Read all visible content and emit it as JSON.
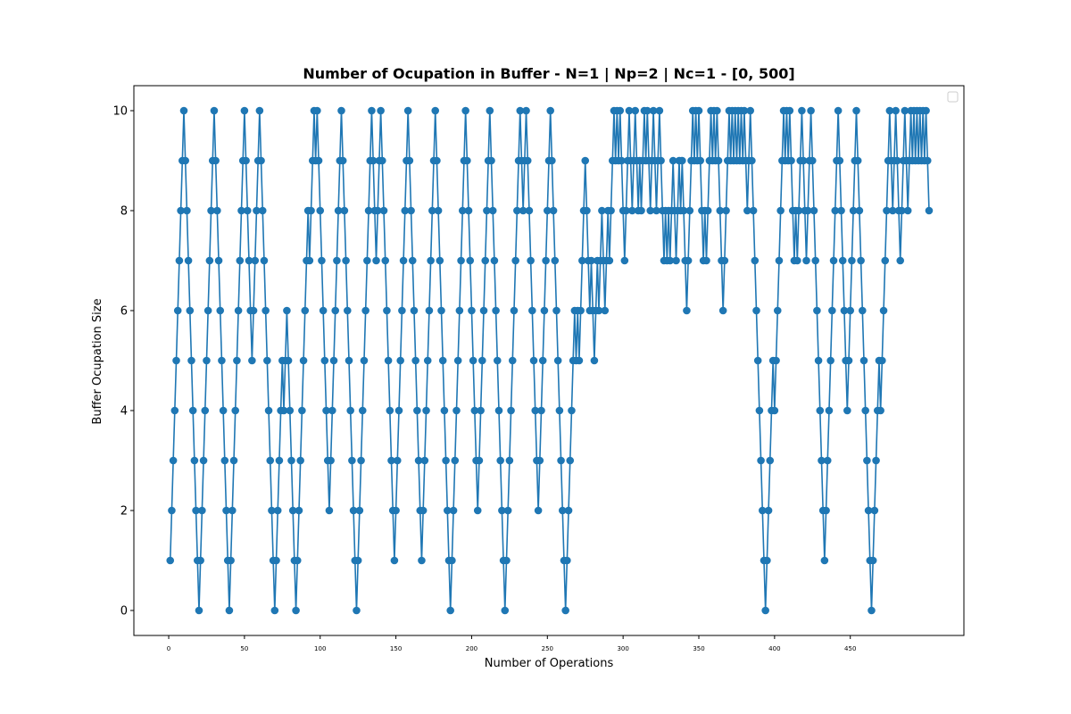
{
  "chart_data": {
    "type": "line",
    "title": "Number of Ocupation in Buffer - N=1 | Np=2 | Nc=1 - [0, 500]",
    "xlabel": "Number of Operations",
    "ylabel": "Buffer Ocupation Size",
    "xlim": [
      -23,
      525
    ],
    "ylim": [
      -0.5,
      10.5
    ],
    "x_ticks": [
      0,
      50,
      100,
      150,
      200,
      250,
      300,
      350,
      400,
      450
    ],
    "y_ticks": [
      0,
      2,
      4,
      6,
      8,
      10
    ],
    "grid": false,
    "legend": "top-right (empty)",
    "series": [
      {
        "color": "#1f77b4",
        "marker": "circle",
        "x_start": 1,
        "values": [
          1,
          2,
          3,
          4,
          5,
          6,
          7,
          8,
          9,
          10,
          9,
          8,
          7,
          6,
          5,
          4,
          3,
          2,
          1,
          0,
          1,
          2,
          3,
          4,
          5,
          6,
          7,
          8,
          9,
          10,
          9,
          8,
          7,
          6,
          5,
          4,
          3,
          2,
          1,
          0,
          1,
          2,
          3,
          4,
          5,
          6,
          7,
          8,
          9,
          10,
          9,
          8,
          7,
          6,
          5,
          6,
          7,
          8,
          9,
          10,
          9,
          8,
          7,
          6,
          5,
          4,
          3,
          2,
          1,
          0,
          1,
          2,
          3,
          4,
          5,
          4,
          5,
          6,
          5,
          4,
          3,
          2,
          1,
          0,
          1,
          2,
          3,
          4,
          5,
          6,
          7,
          8,
          7,
          8,
          9,
          10,
          9,
          10,
          9,
          8,
          7,
          6,
          5,
          4,
          3,
          2,
          3,
          4,
          5,
          6,
          7,
          8,
          9,
          10,
          9,
          8,
          7,
          6,
          5,
          4,
          3,
          2,
          1,
          0,
          1,
          2,
          3,
          4,
          5,
          6,
          7,
          8,
          9,
          10,
          9,
          8,
          7,
          8,
          9,
          10,
          9,
          8,
          7,
          6,
          5,
          4,
          3,
          2,
          1,
          2,
          3,
          4,
          5,
          6,
          7,
          8,
          9,
          10,
          9,
          8,
          7,
          6,
          5,
          4,
          3,
          2,
          1,
          2,
          3,
          4,
          5,
          6,
          7,
          8,
          9,
          10,
          9,
          8,
          7,
          6,
          5,
          4,
          3,
          2,
          1,
          0,
          1,
          2,
          3,
          4,
          5,
          6,
          7,
          8,
          9,
          10,
          9,
          8,
          7,
          6,
          5,
          4,
          3,
          2,
          3,
          4,
          5,
          6,
          7,
          8,
          9,
          10,
          9,
          8,
          7,
          6,
          5,
          4,
          3,
          2,
          1,
          0,
          1,
          2,
          3,
          4,
          5,
          6,
          7,
          8,
          9,
          10,
          9,
          8,
          9,
          10,
          9,
          8,
          7,
          6,
          5,
          4,
          3,
          2,
          3,
          4,
          5,
          6,
          7,
          8,
          9,
          10,
          9,
          8,
          7,
          6,
          5,
          4,
          3,
          2,
          1,
          0,
          1,
          2,
          3,
          4,
          5,
          6,
          5,
          6,
          5,
          6,
          7,
          8,
          9,
          8,
          7,
          6,
          7,
          6,
          5,
          6,
          7,
          6,
          7,
          8,
          7,
          6,
          7,
          8,
          7,
          8,
          9,
          10,
          9,
          10,
          9,
          10,
          9,
          8,
          7,
          8,
          9,
          10,
          9,
          8,
          9,
          10,
          9,
          8,
          9,
          8,
          9,
          10,
          9,
          10,
          9,
          8,
          9,
          10,
          9,
          8,
          9,
          10,
          9,
          8,
          7,
          8,
          7,
          8,
          7,
          8,
          9,
          8,
          7,
          8,
          9,
          8,
          9,
          8,
          7,
          6,
          7,
          8,
          9,
          10,
          9,
          10,
          9,
          10,
          9,
          8,
          7,
          8,
          7,
          8,
          9,
          10,
          9,
          10,
          9,
          10,
          9,
          8,
          7,
          6,
          7,
          8,
          9,
          10,
          9,
          10,
          9,
          10,
          9,
          10,
          9,
          10,
          9,
          10,
          9,
          8,
          9,
          10,
          9,
          8,
          7,
          6,
          5,
          4,
          3,
          2,
          1,
          0,
          1,
          2,
          3,
          4,
          5,
          4,
          5,
          6,
          7,
          8,
          9,
          10,
          9,
          10,
          9,
          10,
          9,
          8,
          7,
          8,
          7,
          8,
          9,
          10,
          9,
          8,
          7,
          8,
          9,
          10,
          9,
          8,
          7,
          6,
          5,
          4,
          3,
          2,
          1,
          2,
          3,
          4,
          5,
          6,
          7,
          8,
          9,
          10,
          9,
          8,
          7,
          6,
          5,
          4,
          5,
          6,
          7,
          8,
          9,
          10,
          9,
          8,
          7,
          6,
          5,
          4,
          3,
          2,
          1,
          0,
          1,
          2,
          3,
          4,
          5,
          4,
          5,
          6,
          7,
          8,
          9,
          10,
          9,
          8,
          9,
          10,
          9,
          8,
          7,
          8,
          9,
          10,
          9,
          8,
          9,
          10,
          9,
          10,
          9,
          10,
          9,
          10,
          9,
          10,
          9,
          10,
          9,
          8
        ]
      }
    ]
  }
}
